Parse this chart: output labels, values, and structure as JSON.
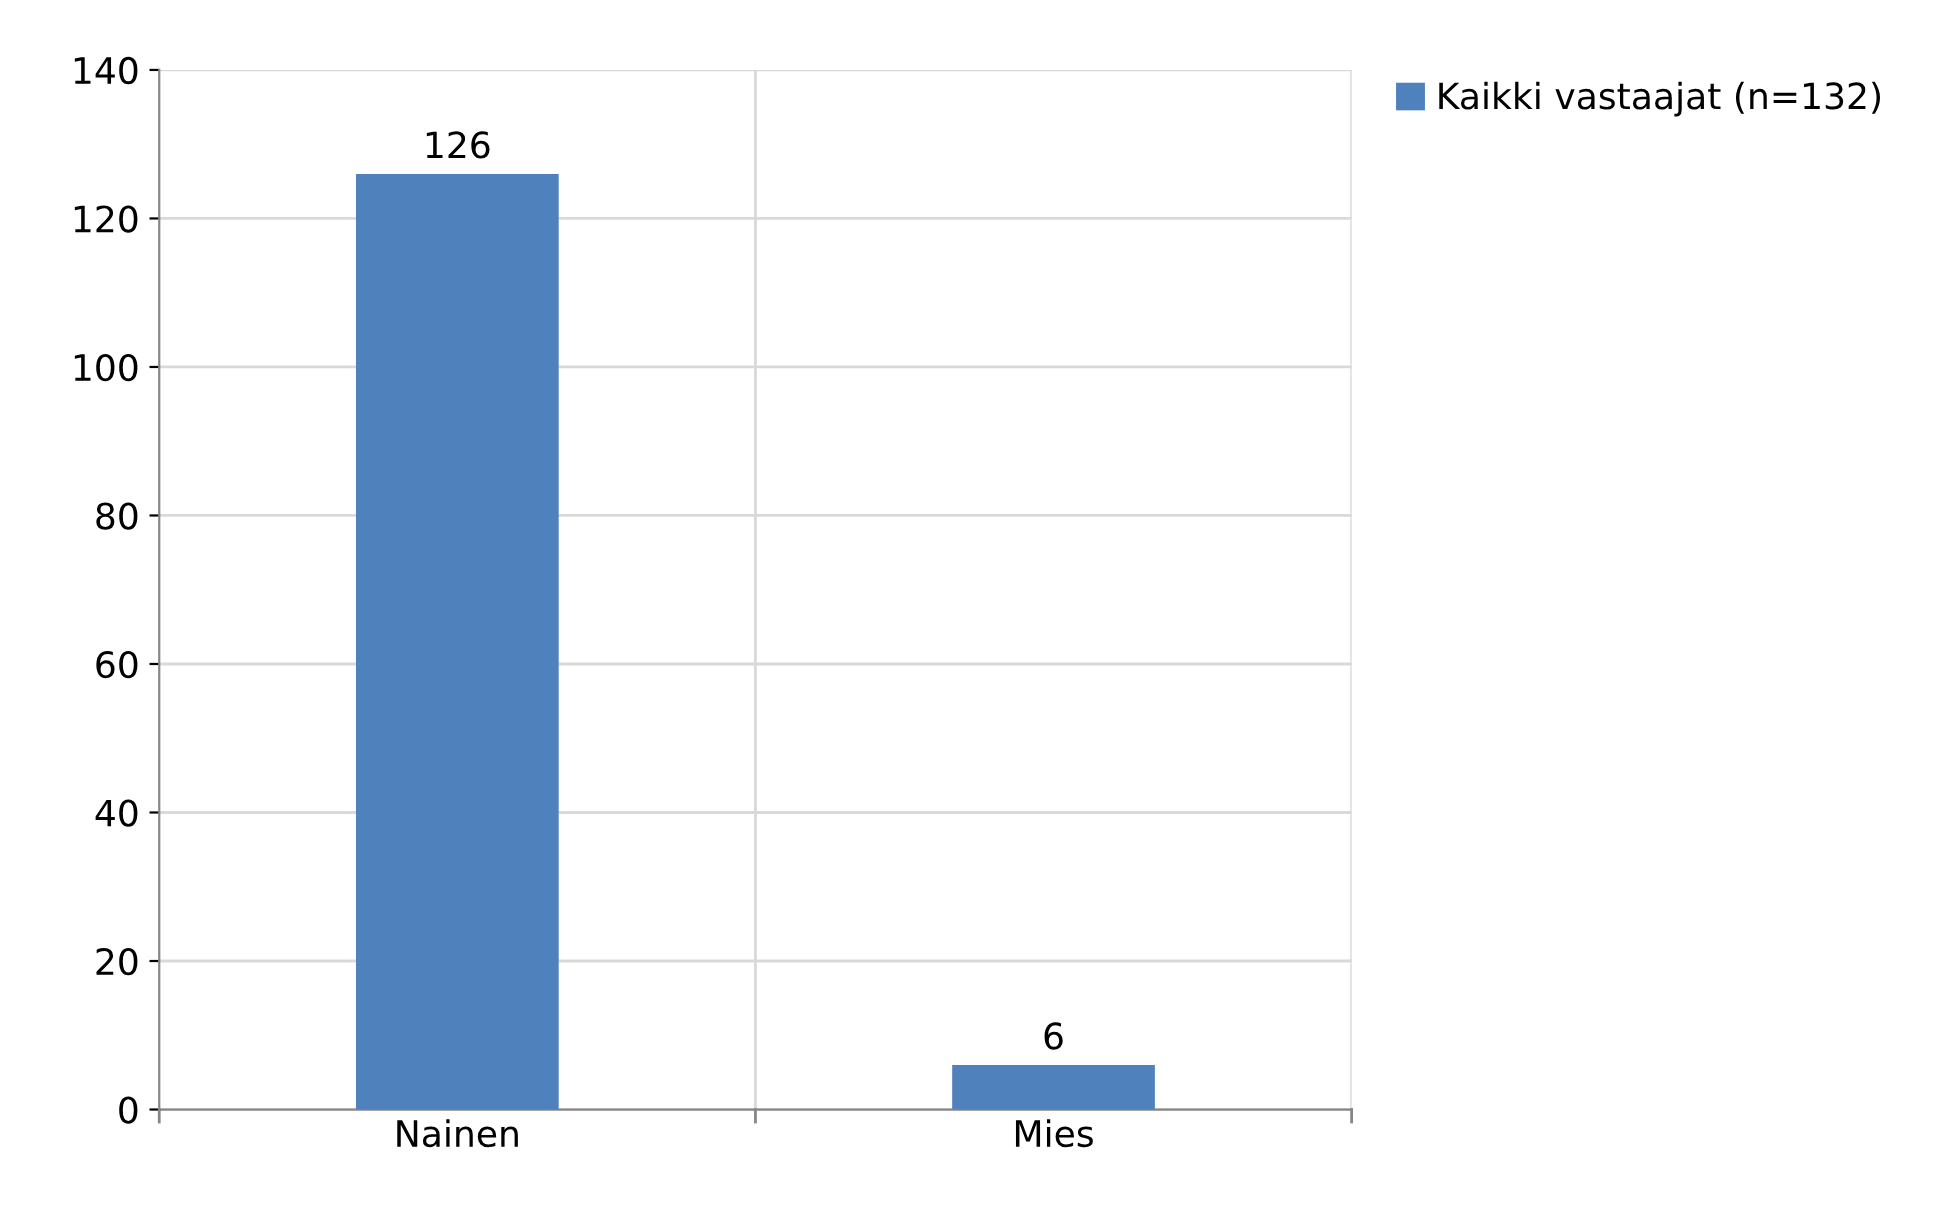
{
  "chart_data": {
    "type": "bar",
    "categories": [
      "Nainen",
      "Mies"
    ],
    "series": [
      {
        "name": "Kaikki vastaajat (n=132)",
        "color": "#4f81bd",
        "values": [
          126,
          6
        ]
      }
    ],
    "ylim": [
      0,
      140
    ],
    "yticks": [
      0,
      20,
      40,
      60,
      80,
      100,
      120,
      140
    ],
    "grid": true,
    "legend": "top right",
    "data_labels": true
  }
}
